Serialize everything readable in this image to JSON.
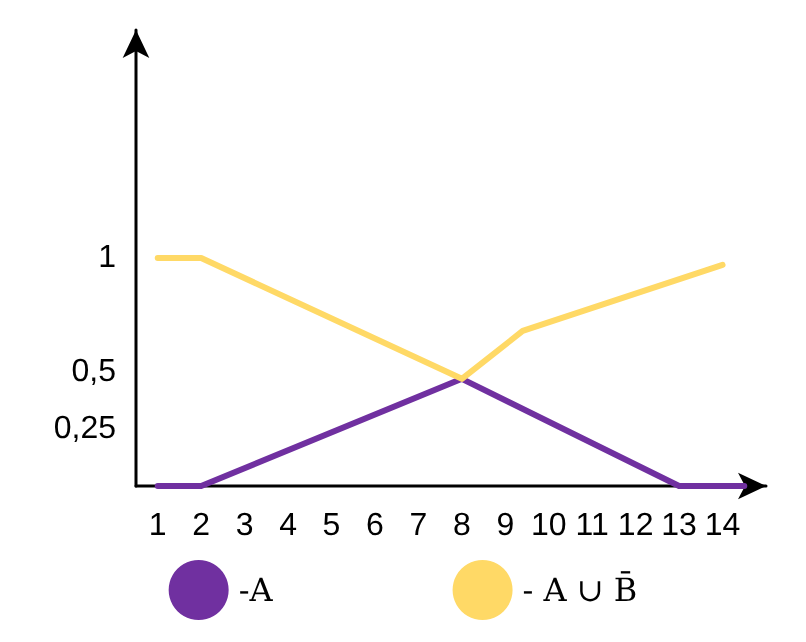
{
  "chart_data": {
    "type": "line",
    "xlim": [
      0.5,
      15
    ],
    "xticks": [
      1,
      2,
      3,
      4,
      5,
      6,
      7,
      8,
      9,
      10,
      11,
      12,
      13,
      14
    ],
    "ylim": [
      0,
      2
    ],
    "yticks": [
      {
        "value": 0.25,
        "label": "0,25"
      },
      {
        "value": 0.5,
        "label": "0,5"
      },
      {
        "value": 1,
        "label": "1"
      }
    ],
    "series": [
      {
        "name": "-A",
        "color": "#7030a0",
        "x": [
          1,
          2,
          8,
          13,
          14.5
        ],
        "values": [
          0,
          0,
          0.47,
          0,
          0
        ]
      },
      {
        "name": "- A ∪ B̄",
        "color": "#ffd966",
        "x": [
          1,
          2,
          8,
          9.4,
          14
        ],
        "values": [
          1,
          1,
          0.47,
          0.68,
          0.97
        ]
      }
    ],
    "grid": false,
    "legend": "bottom",
    "marker": "none",
    "line_style": "solid"
  }
}
